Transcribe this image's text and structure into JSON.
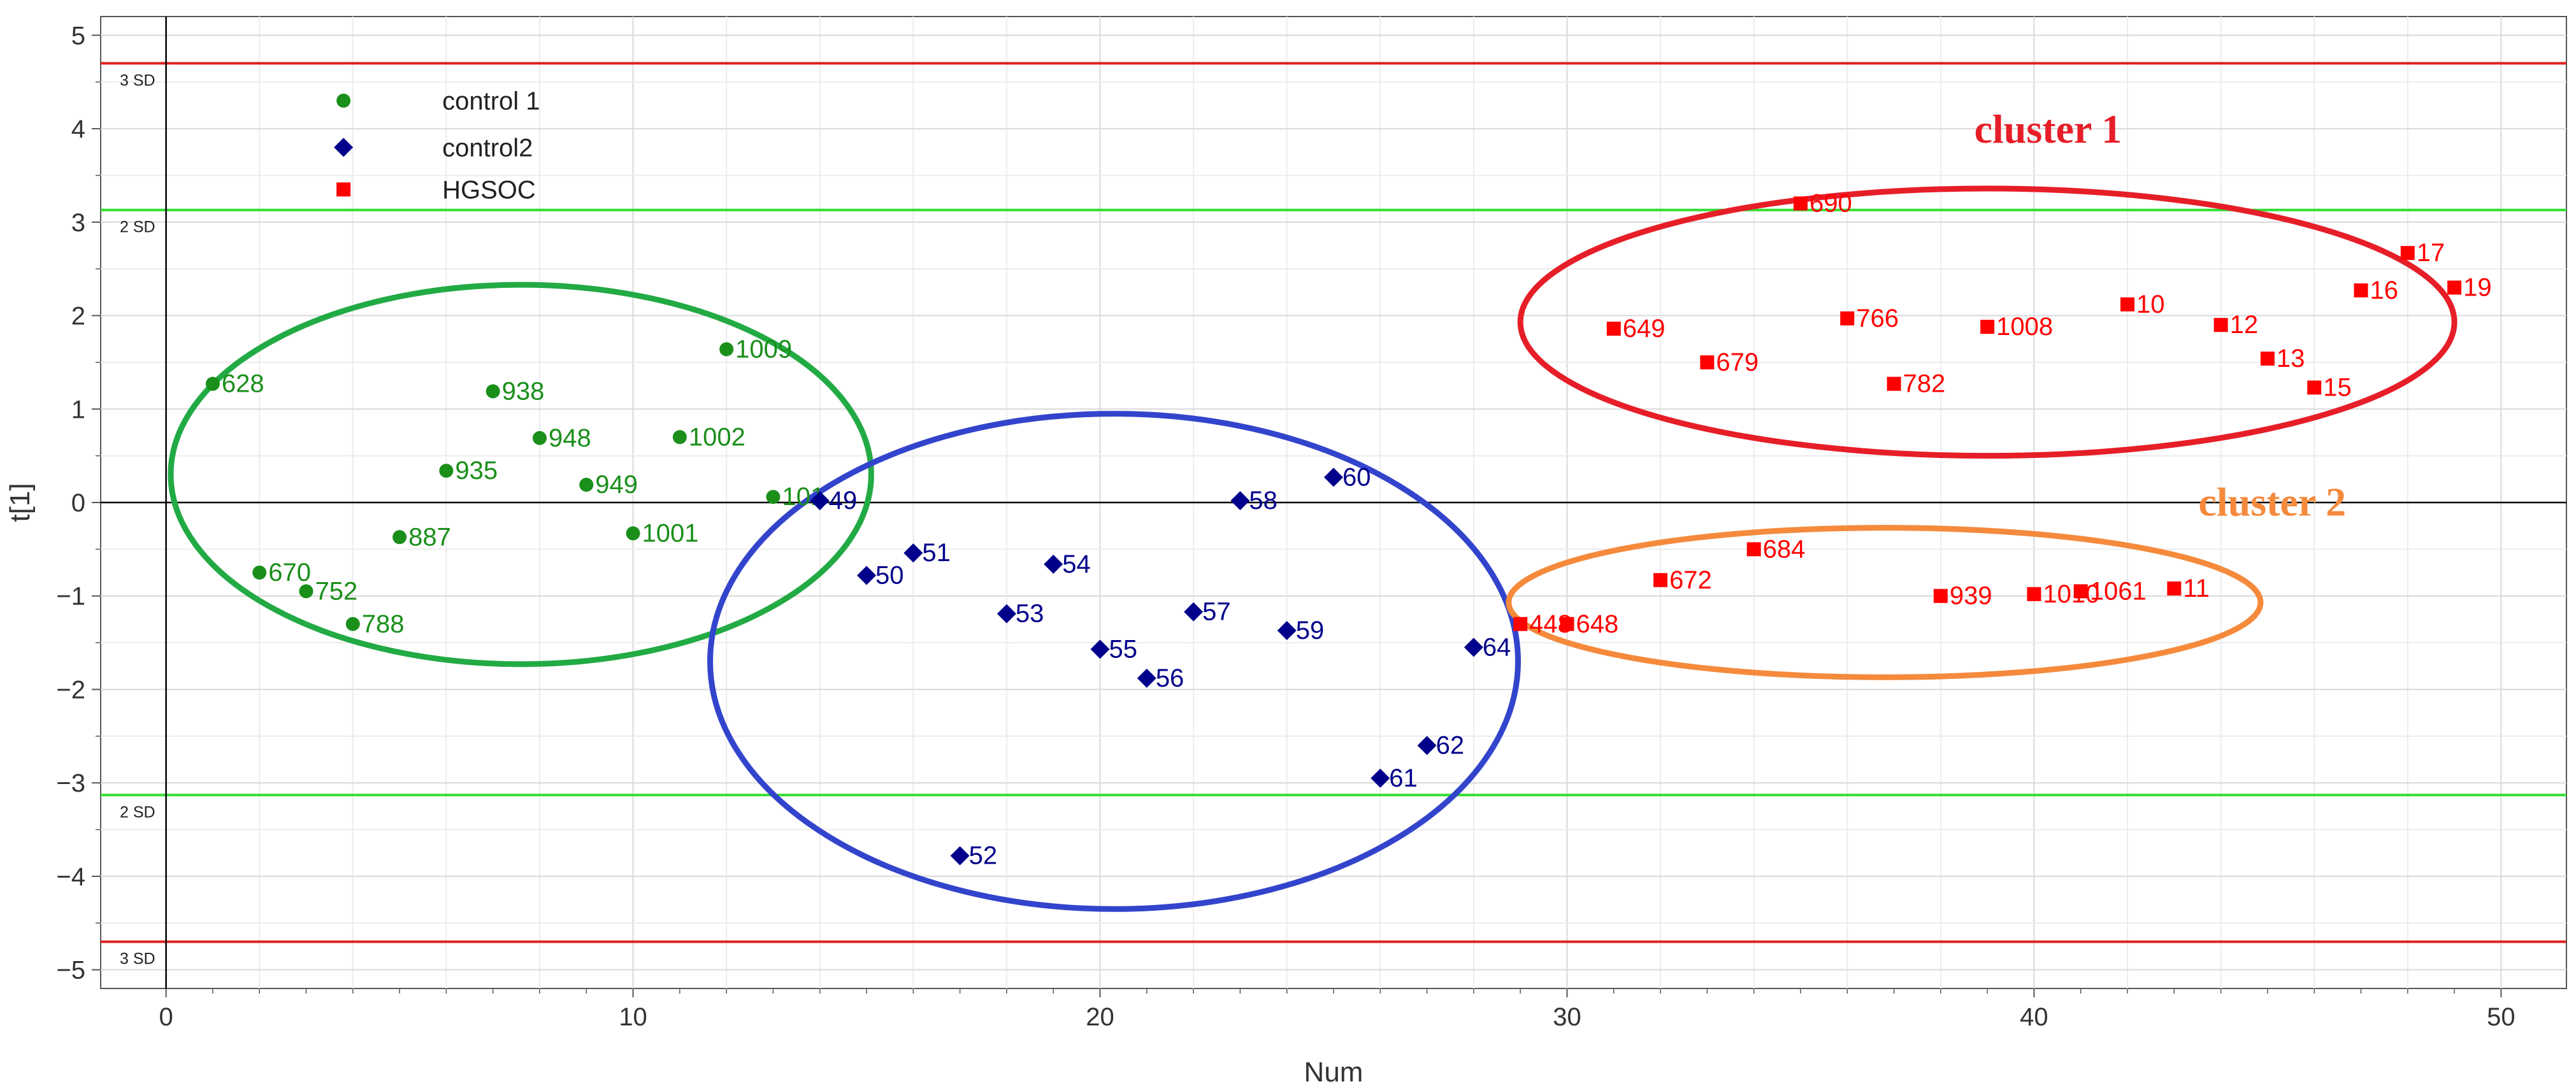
{
  "chart_data": {
    "type": "scatter",
    "xlabel": "Num",
    "ylabel": "t[1]",
    "xlim": [
      -1.4,
      51.4
    ],
    "ylim": [
      -5.2,
      5.2
    ],
    "xticks": [
      0,
      10,
      20,
      30,
      40,
      50
    ],
    "yticks": [
      -5,
      -4,
      -3,
      -2,
      -1,
      0,
      1,
      2,
      3,
      4,
      5
    ],
    "grid": true,
    "legend_position": "top-left",
    "colors": {
      "control1": "#1a8f1a",
      "control2": "#00008b",
      "hgsoc": "#ff0000",
      "sd2_line": "#33dd33",
      "sd3_line": "#dd2222",
      "cluster1": "#e61e28",
      "cluster2": "#f58a3c",
      "control1_ellipse": "#22aa44",
      "control2_ellipse": "#3344cc"
    },
    "reference_lines": [
      {
        "y": 4.7,
        "label": "3 SD",
        "color": "#dd2222"
      },
      {
        "y": 3.13,
        "label": "2 SD",
        "color": "#33dd33"
      },
      {
        "y": -3.13,
        "label": "2 SD",
        "color": "#33dd33"
      },
      {
        "y": -4.7,
        "label": "3 SD",
        "color": "#dd2222"
      }
    ],
    "series": [
      {
        "name": "control 1",
        "marker": "circle",
        "color": "#1a8f1a",
        "points": [
          {
            "x": 1,
            "y": 1.27,
            "label": "628"
          },
          {
            "x": 2,
            "y": -0.75,
            "label": "670"
          },
          {
            "x": 3,
            "y": -0.95,
            "label": "752"
          },
          {
            "x": 4,
            "y": -1.3,
            "label": "788"
          },
          {
            "x": 5,
            "y": -0.37,
            "label": "887"
          },
          {
            "x": 6,
            "y": 0.34,
            "label": "935"
          },
          {
            "x": 7,
            "y": 1.19,
            "label": "938"
          },
          {
            "x": 8,
            "y": 0.69,
            "label": "948"
          },
          {
            "x": 9,
            "y": 0.19,
            "label": "949"
          },
          {
            "x": 10,
            "y": -0.33,
            "label": "1001"
          },
          {
            "x": 11,
            "y": 0.7,
            "label": "1002"
          },
          {
            "x": 12,
            "y": 1.64,
            "label": "1009"
          },
          {
            "x": 13,
            "y": 0.06,
            "label": "101"
          }
        ]
      },
      {
        "name": "control2",
        "marker": "diamond",
        "color": "#00008b",
        "points": [
          {
            "x": 14,
            "y": 0.02,
            "label": "49"
          },
          {
            "x": 15,
            "y": -0.78,
            "label": "50"
          },
          {
            "x": 16,
            "y": -0.54,
            "label": "51"
          },
          {
            "x": 17,
            "y": -3.78,
            "label": "52"
          },
          {
            "x": 18,
            "y": -1.19,
            "label": "53"
          },
          {
            "x": 19,
            "y": -0.66,
            "label": "54"
          },
          {
            "x": 20,
            "y": -1.57,
            "label": "55"
          },
          {
            "x": 21,
            "y": -1.88,
            "label": "56"
          },
          {
            "x": 22,
            "y": -1.17,
            "label": "57"
          },
          {
            "x": 23,
            "y": 0.02,
            "label": "58"
          },
          {
            "x": 24,
            "y": -1.37,
            "label": "59"
          },
          {
            "x": 25,
            "y": 0.27,
            "label": "60"
          },
          {
            "x": 26,
            "y": -2.95,
            "label": "61"
          },
          {
            "x": 27,
            "y": -2.6,
            "label": "62"
          },
          {
            "x": 28,
            "y": -1.55,
            "label": "64"
          }
        ]
      },
      {
        "name": "HGSOC",
        "marker": "square",
        "color": "#ff0000",
        "points": [
          {
            "x": 29,
            "y": -1.3,
            "label": "448"
          },
          {
            "x": 30,
            "y": -1.3,
            "label": "648"
          },
          {
            "x": 31,
            "y": 1.86,
            "label": "649"
          },
          {
            "x": 32,
            "y": -0.83,
            "label": "672"
          },
          {
            "x": 33,
            "y": 1.5,
            "label": "679"
          },
          {
            "x": 34,
            "y": -0.5,
            "label": "684"
          },
          {
            "x": 35,
            "y": 3.2,
            "label": "690"
          },
          {
            "x": 36,
            "y": 1.97,
            "label": "766"
          },
          {
            "x": 37,
            "y": 1.27,
            "label": "782"
          },
          {
            "x": 38,
            "y": -1.0,
            "label": "939"
          },
          {
            "x": 39,
            "y": 1.88,
            "label": "1008"
          },
          {
            "x": 40,
            "y": -0.98,
            "label": "1010"
          },
          {
            "x": 41,
            "y": -0.95,
            "label": "1061"
          },
          {
            "x": 42,
            "y": 2.12,
            "label": "10"
          },
          {
            "x": 43,
            "y": -0.92,
            "label": "11"
          },
          {
            "x": 44,
            "y": 1.9,
            "label": "12"
          },
          {
            "x": 45,
            "y": 1.54,
            "label": "13"
          },
          {
            "x": 46,
            "y": 1.23,
            "label": "15"
          },
          {
            "x": 47,
            "y": 2.27,
            "label": "16"
          },
          {
            "x": 48,
            "y": 2.67,
            "label": "17"
          },
          {
            "x": 49,
            "y": 2.3,
            "label": "19"
          }
        ]
      }
    ],
    "annotations": [
      {
        "text": "cluster 1",
        "color": "#e61e28",
        "x": 40.3,
        "y": 3.85
      },
      {
        "text": "cluster 2",
        "color": "#f58a3c",
        "x": 45.1,
        "y": -0.14
      }
    ],
    "ellipses": [
      {
        "name": "control 1 group",
        "color": "#22aa44",
        "cx": 7.6,
        "cy": 0.3,
        "rx": 15.0,
        "ry": 2.03
      },
      {
        "name": "control2 group",
        "color": "#3344cc",
        "cx": 20.3,
        "cy": -1.7,
        "rx": 17.3,
        "ry": 2.65
      },
      {
        "name": "cluster 1",
        "color": "#e61e28",
        "cx": 39.0,
        "cy": 1.93,
        "rx": 20.0,
        "ry": 1.43
      },
      {
        "name": "cluster 2",
        "color": "#f58a3c",
        "cx": 36.8,
        "cy": -1.07,
        "rx": 16.1,
        "ry": 0.8
      }
    ]
  }
}
